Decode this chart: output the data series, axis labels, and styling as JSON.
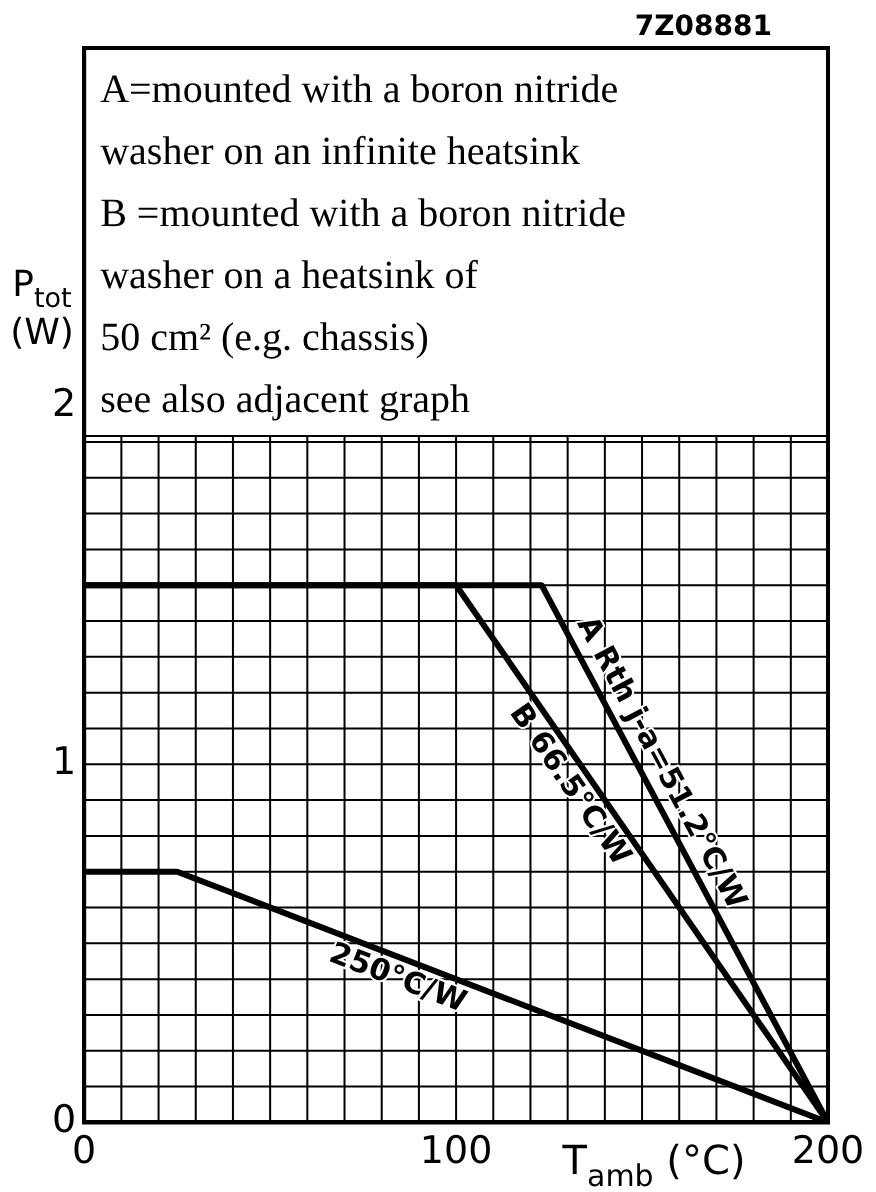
{
  "chart_data": {
    "type": "line",
    "xlabel": "T$_{amb}$ (°C)",
    "ylabel": "P$_{tot}$ (W)",
    "annotations": [
      "7Z08881",
      "A=mounted with a boron nitride",
      "washer on an infinite heatsink",
      "B =mounted with a boron nitride",
      "washer on a heatsink of",
      "50 cm² (e.g. chassis)",
      "see also adjacent graph"
    ],
    "series": [
      {
        "name": "A Rth j-a=51.2°C/W",
        "color": "#000000",
        "x": [
          0,
          123,
          200
        ],
        "values": [
          1.5,
          1.5,
          0
        ]
      },
      {
        "name": "B 66.5°C/W",
        "color": "#000000",
        "x": [
          0,
          100,
          200
        ],
        "values": [
          1.5,
          1.5,
          0
        ]
      },
      {
        "name": "250°C/W",
        "color": "#000000",
        "x": [
          0,
          25,
          200
        ],
        "values": [
          0.7,
          0.7,
          0
        ]
      }
    ],
    "xlim": [
      0,
      200
    ],
    "ylim": [
      0,
      3
    ],
    "xticks": [
      0,
      {
        "value": 10,
        "label": null
      },
      {
        "value": 20,
        "label": null
      },
      {
        "value": 30,
        "label": null
      },
      {
        "value": 40,
        "label": null
      },
      {
        "value": 50,
        "label": null
      },
      {
        "value": 60,
        "label": null
      },
      {
        "value": 70,
        "label": null
      },
      {
        "value": 80,
        "label": null
      },
      {
        "value": 90,
        "label": null
      },
      100,
      {
        "value": 110,
        "label": null
      },
      {
        "value": 120,
        "label": null
      },
      {
        "value": 130,
        "label": null
      },
      {
        "value": 140,
        "label": null
      },
      {
        "value": 150,
        "label": null
      },
      {
        "value": 160,
        "label": null
      },
      {
        "value": 170,
        "label": null
      },
      {
        "value": 180,
        "label": null
      },
      {
        "value": 190,
        "label": null
      },
      200
    ],
    "yticks": [
      0,
      {
        "value": 0.1,
        "label": null
      },
      {
        "value": 0.2,
        "label": null
      },
      {
        "value": 0.3,
        "label": null
      },
      {
        "value": 0.4,
        "label": null
      },
      {
        "value": 0.5,
        "label": null
      },
      {
        "value": 0.6,
        "label": null
      },
      {
        "value": 0.7,
        "label": null
      },
      {
        "value": 0.8,
        "label": null
      },
      {
        "value": 0.9,
        "label": null
      },
      1,
      {
        "value": 1.1,
        "label": null
      },
      {
        "value": 1.2,
        "label": null
      },
      {
        "value": 1.3,
        "label": null
      },
      {
        "value": 1.4,
        "label": null
      },
      {
        "value": 1.5,
        "label": null
      },
      {
        "value": 1.6,
        "label": null
      },
      {
        "value": 1.7,
        "label": null
      },
      {
        "value": 1.8,
        "label": null
      },
      {
        "value": 1.9,
        "label": null
      },
      2
    ],
    "grid": true,
    "legend": false
  }
}
